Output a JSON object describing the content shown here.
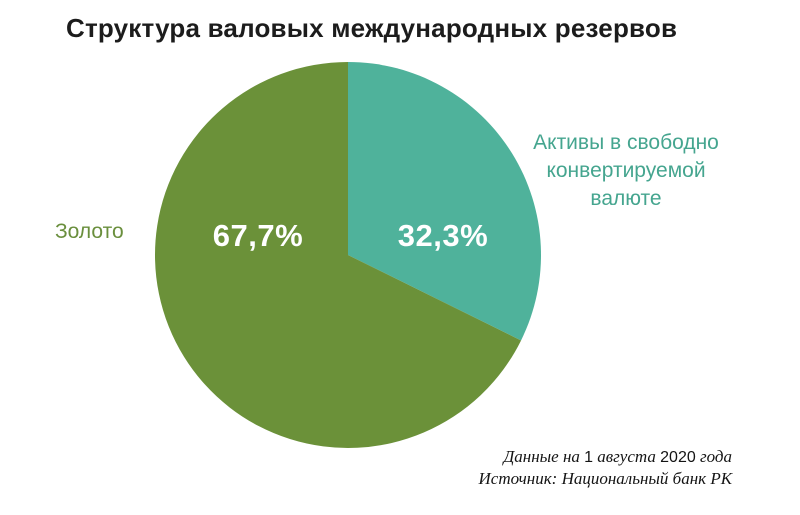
{
  "title": "Структура валовых международных резервов",
  "chart_data": {
    "type": "pie",
    "title": "Структура валовых международных резервов",
    "start_angle_deg": 0,
    "direction": "clockwise",
    "legend_position": "labels-outside",
    "slices": [
      {
        "label": "Активы в свободно конвертируемой валюте",
        "value": 32.3,
        "display": "32,3%",
        "color": "#4FB29B"
      },
      {
        "label": "Золото",
        "value": 67.7,
        "display": "67,7%",
        "color": "#6B9139"
      }
    ]
  },
  "labels": {
    "gold": "Золото",
    "gold_pct": "67,7%",
    "fx_pct": "32,3%",
    "fx_lines": [
      "Активы в свободно",
      "конвертируемой",
      "валюте"
    ]
  },
  "footer": {
    "line1_parts": [
      "Данные на ",
      "1",
      " августа ",
      "2020",
      " года"
    ],
    "line2": "Источник: Национальный банк РК"
  },
  "colors": {
    "background": "#ffffff",
    "title_text": "#1c1c1c",
    "gold_slice": "#6B9139",
    "fx_slice": "#4FB29B",
    "gold_label_text": "#6a8f3d",
    "fx_label_text": "#45a58f",
    "pct_text": "#ffffff",
    "footer_text": "#141414"
  }
}
